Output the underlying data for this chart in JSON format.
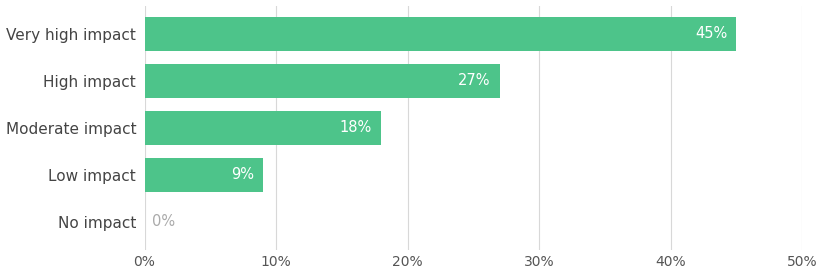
{
  "categories": [
    "Very high impact",
    "High impact",
    "Moderate impact",
    "Low impact",
    "No impact"
  ],
  "values": [
    45,
    27,
    18,
    9,
    0
  ],
  "bar_color": "#4dc48a",
  "label_color_inside": "#ffffff",
  "label_color_outside": "#aaaaaa",
  "xlim": [
    0,
    50
  ],
  "xticks": [
    0,
    10,
    20,
    30,
    40,
    50
  ],
  "bar_height": 0.72,
  "label_fontsize": 10.5,
  "ytick_fontsize": 11,
  "xtick_fontsize": 10,
  "background_color": "#ffffff",
  "grid_color": "#d8d8d8",
  "label_color": "#555555"
}
